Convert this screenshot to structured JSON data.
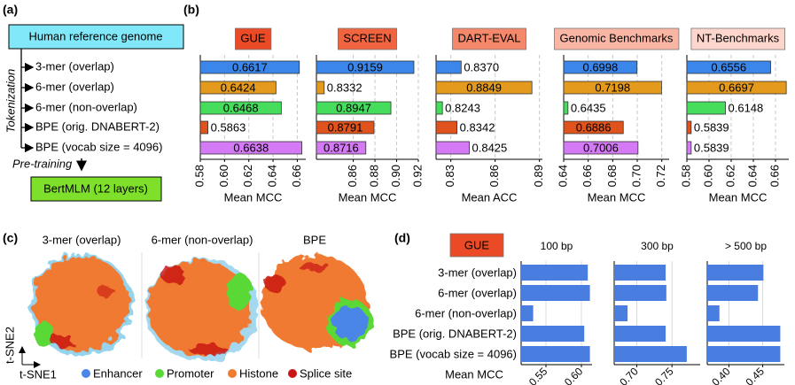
{
  "panel_labels": [
    "(a)",
    "(b)",
    "(c)",
    "(d)"
  ],
  "diagram": {
    "genome": "Human reference genome",
    "tokenization": "Tokenization",
    "pretraining": "Pre-training",
    "model": "BertMLM (12 layers)"
  },
  "tsne": {
    "titles": [
      "3-mer (overlap)",
      "6-mer (non-overlap)",
      "BPE"
    ],
    "xlabel": "t-SNE1",
    "ylabel": "t-SNE2",
    "legend": [
      {
        "name": "Enhancer",
        "color": "#4a86e8"
      },
      {
        "name": "Promoter",
        "color": "#5ad836"
      },
      {
        "name": "Histone",
        "color": "#f07a30"
      },
      {
        "name": "Splice site",
        "color": "#c81414"
      }
    ]
  },
  "chart_data": [
    {
      "type": "bar",
      "title": "GUE",
      "title_color": "#ea4a25",
      "categories": [
        "3-mer (overlap)",
        "6-mer (overlap)",
        "6-mer (non-overlap)",
        "BPE (orig. DNABERT-2)",
        "BPE (vocab size = 4096)"
      ],
      "colors": [
        "#3b86ea",
        "#e39a1d",
        "#46dc5c",
        "#e0531c",
        "#d47af5"
      ],
      "values": [
        0.6617,
        0.6424,
        0.6468,
        0.5863,
        0.6638
      ],
      "xlim": [
        0.58,
        0.667
      ],
      "xticks": [
        0.58,
        {
          "value": 0.6,
          "label": "0.60"
        },
        0.62,
        0.64,
        0.66
      ],
      "xlabel": "Mean MCC",
      "grid": true
    },
    {
      "type": "bar",
      "title": "SCREEN",
      "title_color": "#f06440",
      "values": [
        0.9159,
        0.8332,
        0.8947,
        0.8791,
        0.8716
      ],
      "xlim": [
        0.826,
        0.92
      ],
      "xticks": [
        0.86,
        0.88,
        {
          "value": 0.9,
          "label": "0.90"
        },
        0.92
      ],
      "xlabel": "Mean MCC",
      "grid": true
    },
    {
      "type": "bar",
      "title": "DART-EVAL",
      "title_color": "#f5876a",
      "values": [
        0.837,
        0.8849,
        0.8243,
        0.8342,
        0.8425
      ],
      "value_labels": [
        "0.8370",
        "0.8849",
        "0.8243",
        "0.8342",
        "0.8425"
      ],
      "xlim": [
        0.82,
        0.892
      ],
      "xticks": [
        0.83,
        0.86,
        0.89
      ],
      "xlabel": "Mean ACC",
      "grid": true
    },
    {
      "type": "bar",
      "title": "Genomic Benchmarks",
      "title_color": "#f9b6a4",
      "values": [
        0.6998,
        0.7198,
        0.6435,
        0.6886,
        0.7006
      ],
      "xlim": [
        0.64,
        0.726
      ],
      "xticks": [
        0.64,
        0.66,
        0.68,
        {
          "value": 0.7,
          "label": "0.70"
        },
        0.72
      ],
      "xlabel": "Mean MCC",
      "grid": true
    },
    {
      "type": "bar",
      "title": "NT-Benchmarks",
      "title_color": "#fcd6cc",
      "values": [
        0.6556,
        0.6697,
        0.6148,
        0.5839,
        0.5839
      ],
      "xlim": [
        0.58,
        0.672
      ],
      "xticks": [
        0.58,
        {
          "value": 0.6,
          "label": "0.60"
        },
        0.62,
        0.64,
        0.66
      ],
      "xlabel": "Mean MCC",
      "grid": true
    },
    {
      "type": "bar",
      "title": "100 bp",
      "badge": "GUE",
      "badge_color": "#ea4a25",
      "categories": [
        "3-mer (overlap)",
        "6-mer (overlap)",
        "6-mer (non-overlap)",
        "BPE (orig. DNABERT-2)",
        "BPE (vocab size = 4096)"
      ],
      "color": "#4a7de0",
      "values": [
        0.609,
        0.612,
        0.532,
        0.604,
        0.612
      ],
      "xlim": [
        0.515,
        0.615
      ],
      "xticks": [
        0.55,
        {
          "value": 0.6,
          "label": "0.60"
        }
      ],
      "xlabel": "Mean MCC",
      "grid": true
    },
    {
      "type": "bar",
      "title": "300 bp",
      "color": "#4a7de0",
      "values": [
        0.741,
        0.742,
        0.687,
        0.741,
        0.771
      ],
      "xlim": [
        0.668,
        0.79
      ],
      "xticks": [
        {
          "value": 0.7,
          "label": "0.70"
        },
        0.75
      ],
      "grid": true
    },
    {
      "type": "bar",
      "title": "> 500 bp",
      "color": "#4a7de0",
      "values": [
        0.451,
        0.443,
        0.386,
        0.476,
        0.476
      ],
      "xlim": [
        0.368,
        0.482
      ],
      "xticks": [
        {
          "value": 0.4,
          "label": "0.40"
        },
        0.45
      ],
      "grid": true
    }
  ]
}
